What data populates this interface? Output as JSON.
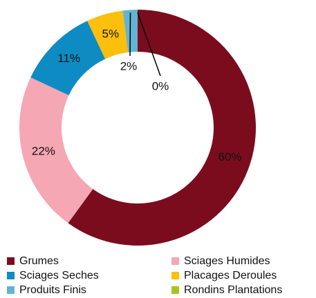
{
  "chart_data": {
    "type": "donut",
    "categories": [
      "Grumes",
      "Sciages Humides",
      "Sciages Seches",
      "Placages Deroules",
      "Produits Finis",
      "Rondins Plantations"
    ],
    "values": [
      60,
      22,
      11,
      5,
      2,
      0
    ],
    "value_labels": [
      "60%",
      "22%",
      "11%",
      "5%",
      "2%",
      "0%"
    ],
    "colors": [
      "#7b0c1e",
      "#f5a7b3",
      "#0f8bc4",
      "#fbbf0c",
      "#62b4d4",
      "#a8c31c"
    ],
    "legend": "bottom"
  }
}
